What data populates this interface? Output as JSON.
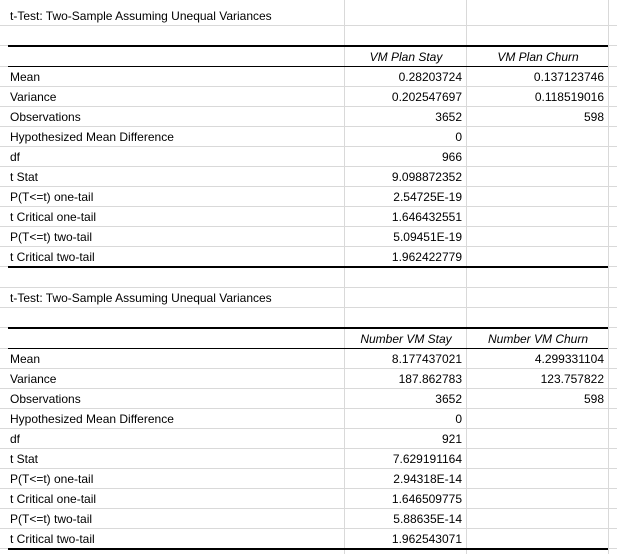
{
  "table1": {
    "title": "t-Test: Two-Sample Assuming Unequal Variances",
    "col1": "VM Plan Stay",
    "col2": "VM Plan Churn",
    "rows": [
      {
        "label": "Mean",
        "v1": "0.28203724",
        "v2": "0.137123746"
      },
      {
        "label": "Variance",
        "v1": "0.202547697",
        "v2": "0.118519016"
      },
      {
        "label": "Observations",
        "v1": "3652",
        "v2": "598"
      },
      {
        "label": "Hypothesized Mean Difference",
        "v1": "0",
        "v2": ""
      },
      {
        "label": "df",
        "v1": "966",
        "v2": ""
      },
      {
        "label": "t Stat",
        "v1": "9.098872352",
        "v2": ""
      },
      {
        "label": "P(T<=t) one-tail",
        "v1": "2.54725E-19",
        "v2": ""
      },
      {
        "label": "t Critical one-tail",
        "v1": "1.646432551",
        "v2": ""
      },
      {
        "label": "P(T<=t) two-tail",
        "v1": "5.09451E-19",
        "v2": ""
      },
      {
        "label": "t Critical two-tail",
        "v1": "1.962422779",
        "v2": ""
      }
    ]
  },
  "table2": {
    "title": "t-Test: Two-Sample Assuming Unequal Variances",
    "col1": "Number VM Stay",
    "col2": "Number VM Churn",
    "rows": [
      {
        "label": "Mean",
        "v1": "8.177437021",
        "v2": "4.299331104"
      },
      {
        "label": "Variance",
        "v1": "187.862783",
        "v2": "123.757822"
      },
      {
        "label": "Observations",
        "v1": "3652",
        "v2": "598"
      },
      {
        "label": "Hypothesized Mean Difference",
        "v1": "0",
        "v2": ""
      },
      {
        "label": "df",
        "v1": "921",
        "v2": ""
      },
      {
        "label": "t Stat",
        "v1": "7.629191164",
        "v2": ""
      },
      {
        "label": "P(T<=t) one-tail",
        "v1": "2.94318E-14",
        "v2": ""
      },
      {
        "label": "t Critical one-tail",
        "v1": "1.646509775",
        "v2": ""
      },
      {
        "label": "P(T<=t) two-tail",
        "v1": "5.88635E-14",
        "v2": ""
      },
      {
        "label": "t Critical two-tail",
        "v1": "1.962543071",
        "v2": ""
      }
    ]
  }
}
